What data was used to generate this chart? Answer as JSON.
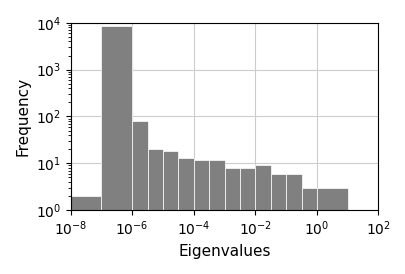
{
  "xlabel": "Eigenvalues",
  "ylabel": "Frequency",
  "bar_color": "#808080",
  "bar_edgecolor": "white",
  "bar_linewidth": 0.5,
  "xlim_log": [
    -8,
    2
  ],
  "ylim_log": [
    0,
    4
  ],
  "figsize": [
    4.06,
    2.74
  ],
  "dpi": 100,
  "bar_left_edges_log": [
    -8,
    -7,
    -6,
    -5.5,
    -5,
    -4.5,
    -4,
    -3.5,
    -3,
    -2.5,
    -2,
    -1.5,
    -1,
    -0.5,
    0,
    1
  ],
  "bar_right_edges_log": [
    -7,
    -6,
    -5.5,
    -5,
    -4.5,
    -4,
    -3.5,
    -3,
    -2.5,
    -2,
    -1.5,
    -1,
    -0.5,
    0,
    1,
    2
  ],
  "bar_heights": [
    2,
    8500,
    80,
    20,
    18,
    13,
    12,
    12,
    8,
    8,
    9,
    6,
    6,
    3,
    3,
    1
  ]
}
